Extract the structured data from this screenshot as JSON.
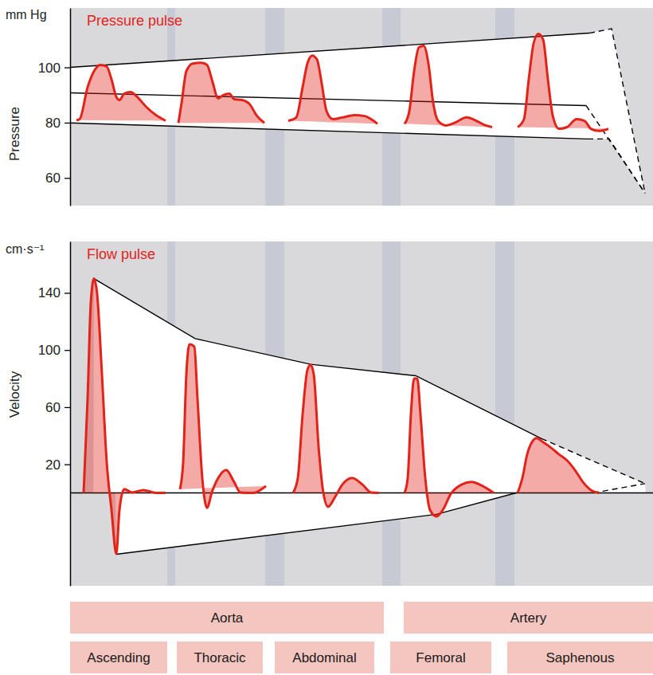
{
  "chart_data": [
    {
      "type": "line",
      "title": "Pressure pulse",
      "ylabel": "Pressure",
      "yunit": "mm Hg",
      "xlim": [
        0,
        732
      ],
      "ylim": [
        50,
        121.5
      ],
      "yticks": [
        60,
        80,
        100
      ],
      "tick_labels": "y",
      "series": [
        {
          "type": "line",
          "color": "#000000",
          "line_style": "solid",
          "x": [
            0,
            652
          ],
          "values": [
            100,
            112.4
          ]
        },
        {
          "type": "line",
          "color": "#000000",
          "line_style": "dashed",
          "x": [
            652,
            680,
            722
          ],
          "values": [
            112.4,
            114,
            54.5
          ]
        },
        {
          "type": "line",
          "color": "#000000",
          "line_style": "solid",
          "x": [
            0,
            648
          ],
          "values": [
            90.8,
            86.2
          ]
        },
        {
          "type": "line",
          "color": "#000000",
          "line_style": "dashed",
          "x": [
            648,
            722
          ],
          "values": [
            86.2,
            54.5
          ]
        },
        {
          "type": "line",
          "color": "#000000",
          "line_style": "solid",
          "x": [
            0,
            650
          ],
          "values": [
            79.9,
            74.1
          ]
        },
        {
          "type": "line",
          "color": "#000000",
          "line_style": "dashed",
          "x": [
            650,
            677,
            722
          ],
          "values": [
            74.1,
            74.1,
            54.5
          ]
        },
        {
          "type": "area",
          "color": "#e2231a",
          "x": [
            8,
            12,
            22,
            30,
            38,
            46,
            52,
            58,
            62,
            68,
            76,
            84,
            96,
            108,
            120
          ],
          "values": [
            80.9,
            81.3,
            92.8,
            98.6,
            100.9,
            100.3,
            95.7,
            89.4,
            88.2,
            90.5,
            91.1,
            89.4,
            85.6,
            82.7,
            80.7
          ]
        },
        {
          "type": "area",
          "color": "#e2231a",
          "x": [
            136,
            140,
            146,
            154,
            164,
            172,
            178,
            186,
            192,
            200,
            206,
            216,
            226,
            234,
            244
          ],
          "values": [
            79.9,
            87.1,
            98.6,
            101.4,
            101.7,
            100.9,
            95.7,
            88.8,
            89.9,
            90.5,
            88.5,
            88.2,
            86.5,
            82.7,
            79.9
          ]
        },
        {
          "type": "area",
          "color": "#e2231a",
          "x": [
            274,
            284,
            292,
            298,
            304,
            310,
            316,
            322,
            330,
            342,
            357,
            370,
            378,
            386
          ],
          "values": [
            80.7,
            81.9,
            92.8,
            101.4,
            104.3,
            102.9,
            94.2,
            84.2,
            81.3,
            81.9,
            82.7,
            82.4,
            81.3,
            79.6
          ]
        },
        {
          "type": "area",
          "color": "#e2231a",
          "x": [
            420,
            426,
            432,
            438,
            444,
            450,
            456,
            462,
            472,
            484,
            498,
            510,
            522,
            530
          ],
          "values": [
            79.6,
            84.2,
            98.6,
            107.2,
            107.8,
            101.4,
            87.1,
            80.7,
            79.0,
            80.1,
            81.9,
            80.7,
            79.0,
            78.4
          ]
        },
        {
          "type": "area",
          "color": "#e2231a",
          "x": [
            562,
            570,
            576,
            582,
            588,
            594,
            600,
            606,
            614,
            624,
            636,
            646,
            654,
            664,
            676
          ],
          "values": [
            78.4,
            81.3,
            95.7,
            108.6,
            112.1,
            110.1,
            95.7,
            82.7,
            77.8,
            78.4,
            81.3,
            80.7,
            77.8,
            77.0,
            77.8
          ]
        }
      ]
    },
    {
      "type": "line",
      "title": "Flow pulse",
      "ylabel": "Velocity",
      "yunit": "cm·s⁻¹",
      "xlim": [
        0,
        732
      ],
      "ylim": [
        -65,
        176
      ],
      "yticks": [
        20,
        60,
        100,
        140
      ],
      "tick_labels": "y",
      "series": [
        {
          "type": "line",
          "color": "#000000",
          "line_style": "solid",
          "x": [
            0,
            732
          ],
          "values": [
            0,
            0
          ]
        },
        {
          "type": "line",
          "color": "#000000",
          "line_style": "solid",
          "x": [
            30,
            157,
            302,
            434,
            592
          ],
          "values": [
            150,
            108,
            90,
            82,
            38
          ]
        },
        {
          "type": "line",
          "color": "#000000",
          "line_style": "dashed",
          "x": [
            592,
            722
          ],
          "values": [
            38,
            6.5
          ]
        },
        {
          "type": "line",
          "color": "#000000",
          "line_style": "solid",
          "x": [
            58,
            460,
            560
          ],
          "values": [
            -43,
            -15,
            0
          ]
        },
        {
          "type": "line",
          "color": "#000000",
          "line_style": "dashed",
          "x": [
            657,
            722
          ],
          "values": [
            0,
            6.5
          ]
        },
        {
          "type": "area",
          "color": "#e2231a",
          "x": [
            17,
            22,
            26,
            30,
            34,
            40,
            46,
            52,
            58,
            62,
            68,
            78,
            92,
            108,
            120
          ],
          "values": [
            0,
            66,
            133,
            150,
            139,
            83,
            21.5,
            -12,
            -42.7,
            -12,
            2.6,
            0.3,
            2,
            0,
            0
          ]
        },
        {
          "type": "area",
          "color": "#e2231a",
          "x": [
            138,
            142,
            146,
            150,
            156,
            160,
            166,
            172,
            178,
            186,
            196,
            206,
            214,
            230,
            246
          ],
          "values": [
            2.6,
            21.5,
            83,
            104,
            102.4,
            66,
            10.4,
            -10.4,
            0.3,
            10.4,
            16,
            7.6,
            0.3,
            0,
            4.8
          ]
        },
        {
          "type": "area",
          "color": "#e2231a",
          "x": [
            280,
            286,
            292,
            298,
            302,
            306,
            312,
            318,
            324,
            332,
            342,
            354,
            367,
            378,
            388
          ],
          "values": [
            0,
            10.4,
            55,
            86,
            89.7,
            83,
            32.7,
            0.3,
            -9.7,
            -3.6,
            5.9,
            10.4,
            5.9,
            0.3,
            0
          ]
        },
        {
          "type": "area",
          "color": "#e2231a",
          "x": [
            420,
            424,
            428,
            432,
            436,
            440,
            446,
            452,
            460,
            468,
            478,
            492,
            504,
            518,
            532
          ],
          "values": [
            0,
            10.4,
            55,
            80,
            80,
            55,
            10.4,
            -12,
            -16.5,
            -12,
            -0.8,
            5.9,
            7.6,
            4.8,
            0
          ]
        },
        {
          "type": "area",
          "color": "#e2231a",
          "x": [
            562,
            568,
            574,
            580,
            586,
            594,
            604,
            614,
            624,
            634,
            644,
            654,
            664
          ],
          "values": [
            0,
            10.4,
            27,
            35.5,
            38.3,
            35.5,
            31.6,
            27,
            22.7,
            16,
            7.6,
            2,
            0
          ]
        }
      ]
    }
  ],
  "footer": {
    "groups": [
      "Aorta",
      "Artery"
    ],
    "sites": [
      "Ascending",
      "Thoracic",
      "Abdominal",
      "Femoral",
      "Saphenous"
    ]
  }
}
